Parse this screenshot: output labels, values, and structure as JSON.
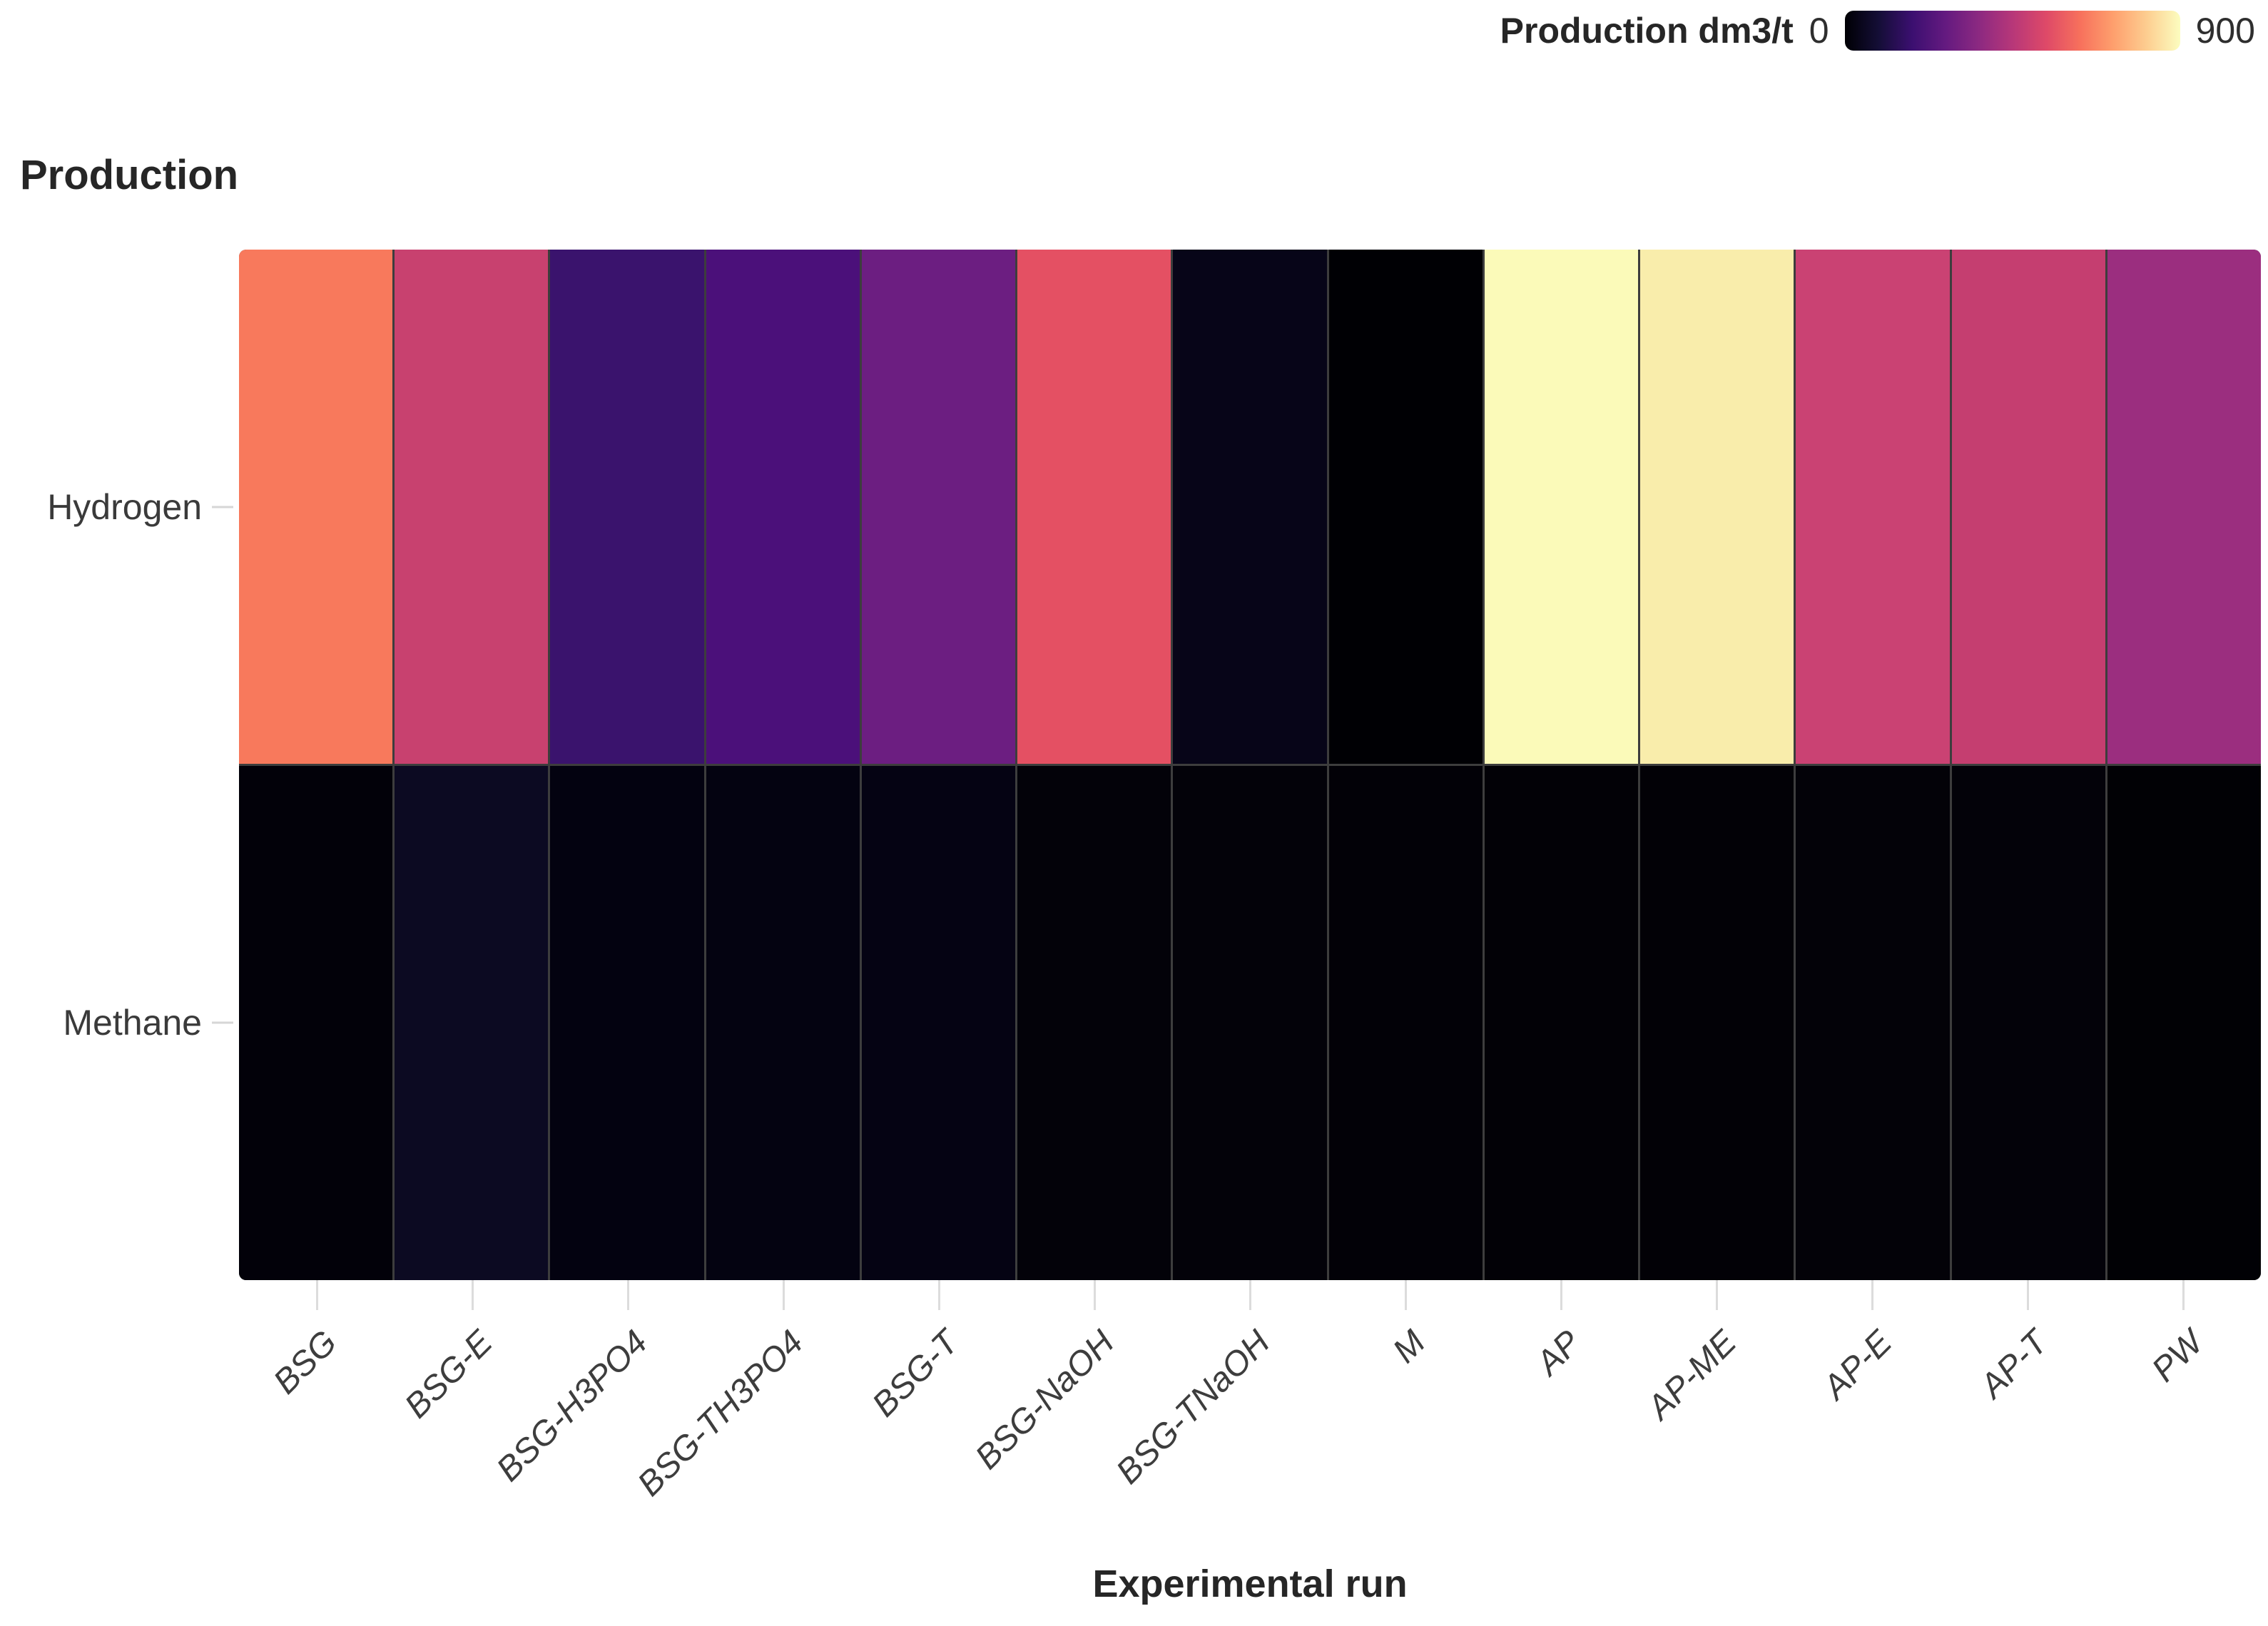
{
  "chart_data": {
    "type": "heatmap",
    "title": "Production",
    "xlabel": "Experimental run",
    "ylabel": "",
    "colorbar": {
      "title": "Production dm3/t",
      "min": 0,
      "max": 900,
      "colormap": "magma",
      "gradient_stops": [
        "#000004",
        "#140e36",
        "#3b0f70",
        "#641a80",
        "#8c2981",
        "#b73779",
        "#de4968",
        "#f7705c",
        "#fe9f6d",
        "#fdcd90",
        "#fcfdbf"
      ]
    },
    "x_categories": [
      "BSG",
      "BSG-E",
      "BSG-H3PO4",
      "BSG-TH3PO4",
      "BSG-T",
      "BSG-NaOH",
      "BSG-TNaOH",
      "M",
      "AP",
      "AP-ME",
      "AP-E",
      "AP-T",
      "PW"
    ],
    "y_categories": [
      "Hydrogen",
      "Methane"
    ],
    "series": [
      {
        "name": "Hydrogen",
        "values": [
          765,
          605,
          215,
          270,
          365,
          695,
          30,
          5,
          895,
          865,
          610,
          595,
          490
        ],
        "colors": [
          "#f8795c",
          "#c8416f",
          "#3a136d",
          "#4b107a",
          "#6c1e81",
          "#e45063",
          "#070518",
          "#000004",
          "#fbfab9",
          "#f9edab",
          "#ca4273",
          "#c53e70",
          "#9b2e7f"
        ]
      },
      {
        "name": "Methane",
        "values": [
          15,
          60,
          20,
          20,
          25,
          15,
          15,
          10,
          8,
          8,
          10,
          15,
          5
        ],
        "colors": [
          "#020109",
          "#0c0a22",
          "#030210",
          "#040311",
          "#050313",
          "#030209",
          "#030209",
          "#020107",
          "#020106",
          "#020106",
          "#030208",
          "#030209",
          "#010105"
        ]
      }
    ],
    "grid_line_color": "#3d3d3d",
    "legend_position": "top-right",
    "x_tick_rotation_deg": 45
  }
}
